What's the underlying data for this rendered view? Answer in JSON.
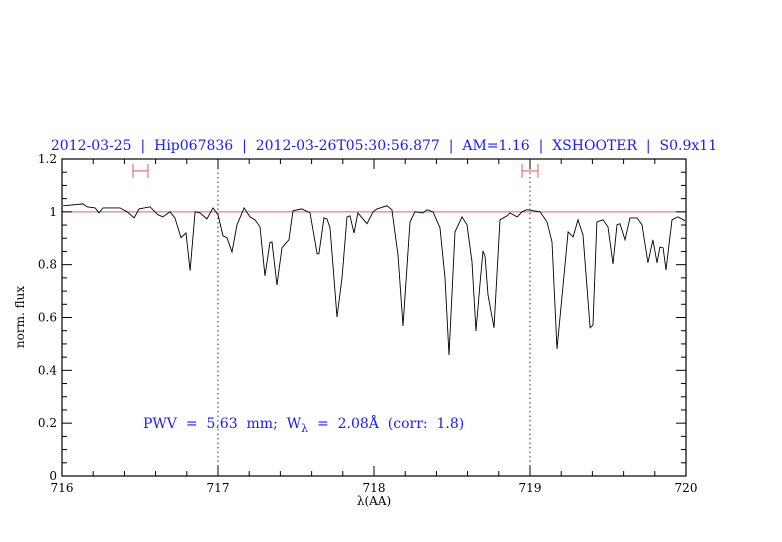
{
  "chart_data": {
    "type": "line",
    "title": "2012-03-25  |  Hip067836  |  2012-03-26T05:30:56.877  |  AM=1.16  |  XSHOOTER  |  S0.9x11",
    "xlabel": "λ(AA)",
    "ylabel": "norm. flux",
    "xlim": [
      716,
      720
    ],
    "ylim": [
      0,
      1.2
    ],
    "x_ticks": [
      "716",
      "717",
      "718",
      "719",
      "720"
    ],
    "y_ticks": [
      "0",
      "0.2",
      "0.4",
      "0.6",
      "0.8",
      "1",
      "1.2"
    ],
    "annotation": {
      "prefix": "PWV  =  5.63  mm;  W",
      "subscript": "λ",
      "suffix": "  =  2.08Å  (corr:  1.8)"
    },
    "reference_line": 1.0,
    "vertical_markers": [
      717,
      719
    ],
    "intervals": [
      [
        716.455,
        716.551
      ],
      [
        718.949,
        719.051
      ]
    ],
    "interval_level": 1.155,
    "colors": {
      "spectrum": "#000000",
      "title": "#1a1aff",
      "reference": "#e06060",
      "intervals": "#f07070"
    },
    "series": [
      {
        "x": [
          716.008,
          716.135,
          716.16,
          716.212,
          716.237,
          716.263,
          716.372,
          716.417,
          716.462,
          716.494,
          716.564,
          716.615,
          716.647,
          716.692,
          716.724,
          716.763,
          716.795,
          716.821,
          716.853,
          716.885,
          716.929,
          716.968,
          717.0,
          717.032,
          717.058,
          717.09,
          717.122,
          717.167,
          717.205,
          717.237,
          717.269,
          717.301,
          717.333,
          717.346,
          717.378,
          717.41,
          717.442,
          717.455,
          717.481,
          717.538,
          717.59,
          717.635,
          717.647,
          717.679,
          717.699,
          717.718,
          717.763,
          717.795,
          717.827,
          717.846,
          717.872,
          717.897,
          717.955,
          717.994,
          718.019,
          718.083,
          718.115,
          718.154,
          718.186,
          718.231,
          718.263,
          718.314,
          718.34,
          718.378,
          718.423,
          718.455,
          718.481,
          718.519,
          718.564,
          718.596,
          718.628,
          718.654,
          718.679,
          718.699,
          718.712,
          718.731,
          718.769,
          718.808,
          718.853,
          718.872,
          718.917,
          718.949,
          718.981,
          719.064,
          719.109,
          719.141,
          719.173,
          719.212,
          719.244,
          719.276,
          719.308,
          719.34,
          719.385,
          719.404,
          719.429,
          719.468,
          719.5,
          719.532,
          719.558,
          719.577,
          719.609,
          719.641,
          719.686,
          719.718,
          719.756,
          719.788,
          719.814,
          719.833,
          719.853,
          719.872,
          719.91,
          719.949,
          719.994
        ],
        "y": [
          1.023,
          1.03,
          1.019,
          1.015,
          0.996,
          1.015,
          1.015,
          1.0,
          0.977,
          1.011,
          1.019,
          0.989,
          0.981,
          1.0,
          0.977,
          0.902,
          0.92,
          0.777,
          1.0,
          0.996,
          0.973,
          1.015,
          0.989,
          0.909,
          0.902,
          0.848,
          0.951,
          1.015,
          0.981,
          0.97,
          0.943,
          0.758,
          0.883,
          0.886,
          0.723,
          0.864,
          0.886,
          0.894,
          1.004,
          1.011,
          0.996,
          0.841,
          0.841,
          0.977,
          0.973,
          0.939,
          0.602,
          0.75,
          0.981,
          0.985,
          0.92,
          0.996,
          0.955,
          1.0,
          1.011,
          1.023,
          1.008,
          0.837,
          0.568,
          0.962,
          1.0,
          0.996,
          1.008,
          1.0,
          0.939,
          0.75,
          0.458,
          0.924,
          0.981,
          0.951,
          0.811,
          0.549,
          0.723,
          0.852,
          0.83,
          0.686,
          0.561,
          0.97,
          0.985,
          0.996,
          0.981,
          1.0,
          1.008,
          1.0,
          0.962,
          0.886,
          0.481,
          0.723,
          0.924,
          0.905,
          0.97,
          0.913,
          0.561,
          0.572,
          0.962,
          0.97,
          0.943,
          0.803,
          0.951,
          0.955,
          0.894,
          0.977,
          0.977,
          0.951,
          0.807,
          0.894,
          0.807,
          0.867,
          0.864,
          0.78,
          0.97,
          0.981,
          0.966
        ]
      }
    ]
  }
}
